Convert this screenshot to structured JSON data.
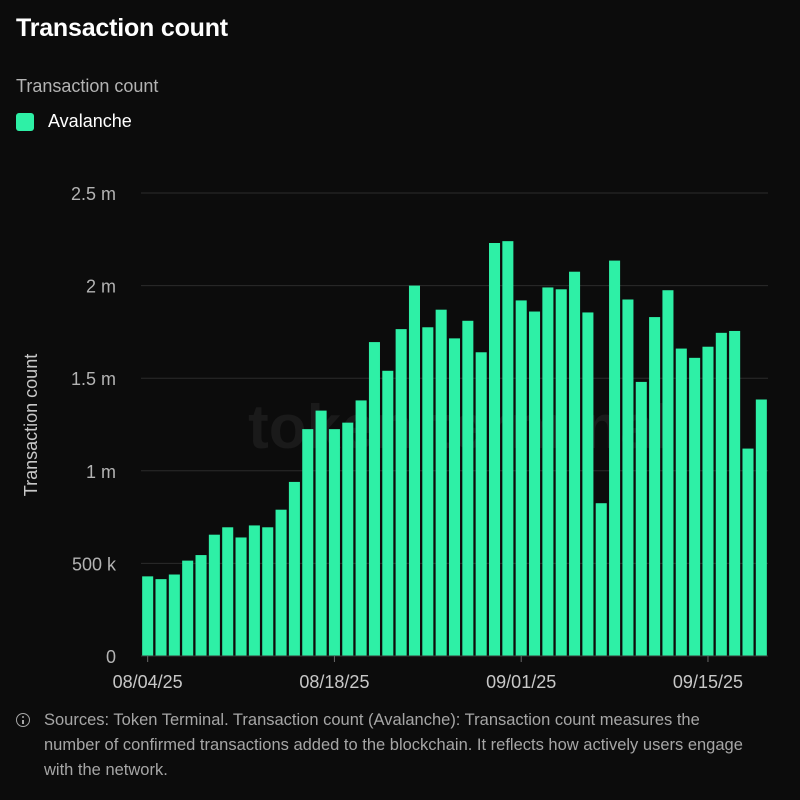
{
  "header": {
    "title": "Transaction count",
    "subtitle": "Transaction count",
    "legend_label": "Avalanche"
  },
  "watermark": "token terminal",
  "source_note": "Sources: Token Terminal. Transaction count (Avalanche): Transaction count measures the number of confirmed transactions added to the blockchain. It reflects how actively users engage with the network.",
  "chart_data": {
    "type": "bar",
    "title": "Transaction count",
    "ylabel": "Transaction count",
    "xlabel": "",
    "ylim": [
      0,
      2500000
    ],
    "yticks": [
      0,
      500000,
      1000000,
      1500000,
      2000000,
      2500000
    ],
    "ytick_labels": [
      "0",
      "500 k",
      "1 m",
      "1.5 m",
      "2 m",
      "2.5 m"
    ],
    "xtick_labels": [
      {
        "label": "08/04/25",
        "date": "2025-08-04"
      },
      {
        "label": "08/18/25",
        "date": "2025-08-18"
      },
      {
        "label": "09/01/25",
        "date": "2025-09-01"
      },
      {
        "label": "09/15/25",
        "date": "2025-09-15"
      }
    ],
    "grid": true,
    "legend_position": "top-left",
    "series": [
      {
        "name": "Avalanche",
        "color": "#2ef0a6",
        "x": [
          "2025-08-04",
          "2025-08-05",
          "2025-08-06",
          "2025-08-07",
          "2025-08-08",
          "2025-08-09",
          "2025-08-10",
          "2025-08-11",
          "2025-08-12",
          "2025-08-13",
          "2025-08-14",
          "2025-08-15",
          "2025-08-16",
          "2025-08-17",
          "2025-08-18",
          "2025-08-19",
          "2025-08-20",
          "2025-08-21",
          "2025-08-22",
          "2025-08-23",
          "2025-08-24",
          "2025-08-25",
          "2025-08-26",
          "2025-08-27",
          "2025-08-28",
          "2025-08-29",
          "2025-08-30",
          "2025-08-31",
          "2025-09-01",
          "2025-09-02",
          "2025-09-03",
          "2025-09-04",
          "2025-09-05",
          "2025-09-06",
          "2025-09-07",
          "2025-09-08",
          "2025-09-09",
          "2025-09-10",
          "2025-09-11",
          "2025-09-12",
          "2025-09-13",
          "2025-09-14",
          "2025-09-15",
          "2025-09-16",
          "2025-09-17",
          "2025-09-18",
          "2025-09-19"
        ],
        "values": [
          430000,
          415000,
          440000,
          515000,
          545000,
          655000,
          695000,
          640000,
          705000,
          695000,
          790000,
          940000,
          1225000,
          1325000,
          1225000,
          1260000,
          1380000,
          1695000,
          1540000,
          1765000,
          2000000,
          1775000,
          1870000,
          1715000,
          1810000,
          1640000,
          2230000,
          2240000,
          1920000,
          1860000,
          1990000,
          1980000,
          2075000,
          1855000,
          825000,
          2135000,
          1925000,
          1480000,
          1830000,
          1975000,
          1660000,
          1610000,
          1670000,
          1745000,
          1755000,
          1120000,
          1385000
        ]
      }
    ]
  }
}
